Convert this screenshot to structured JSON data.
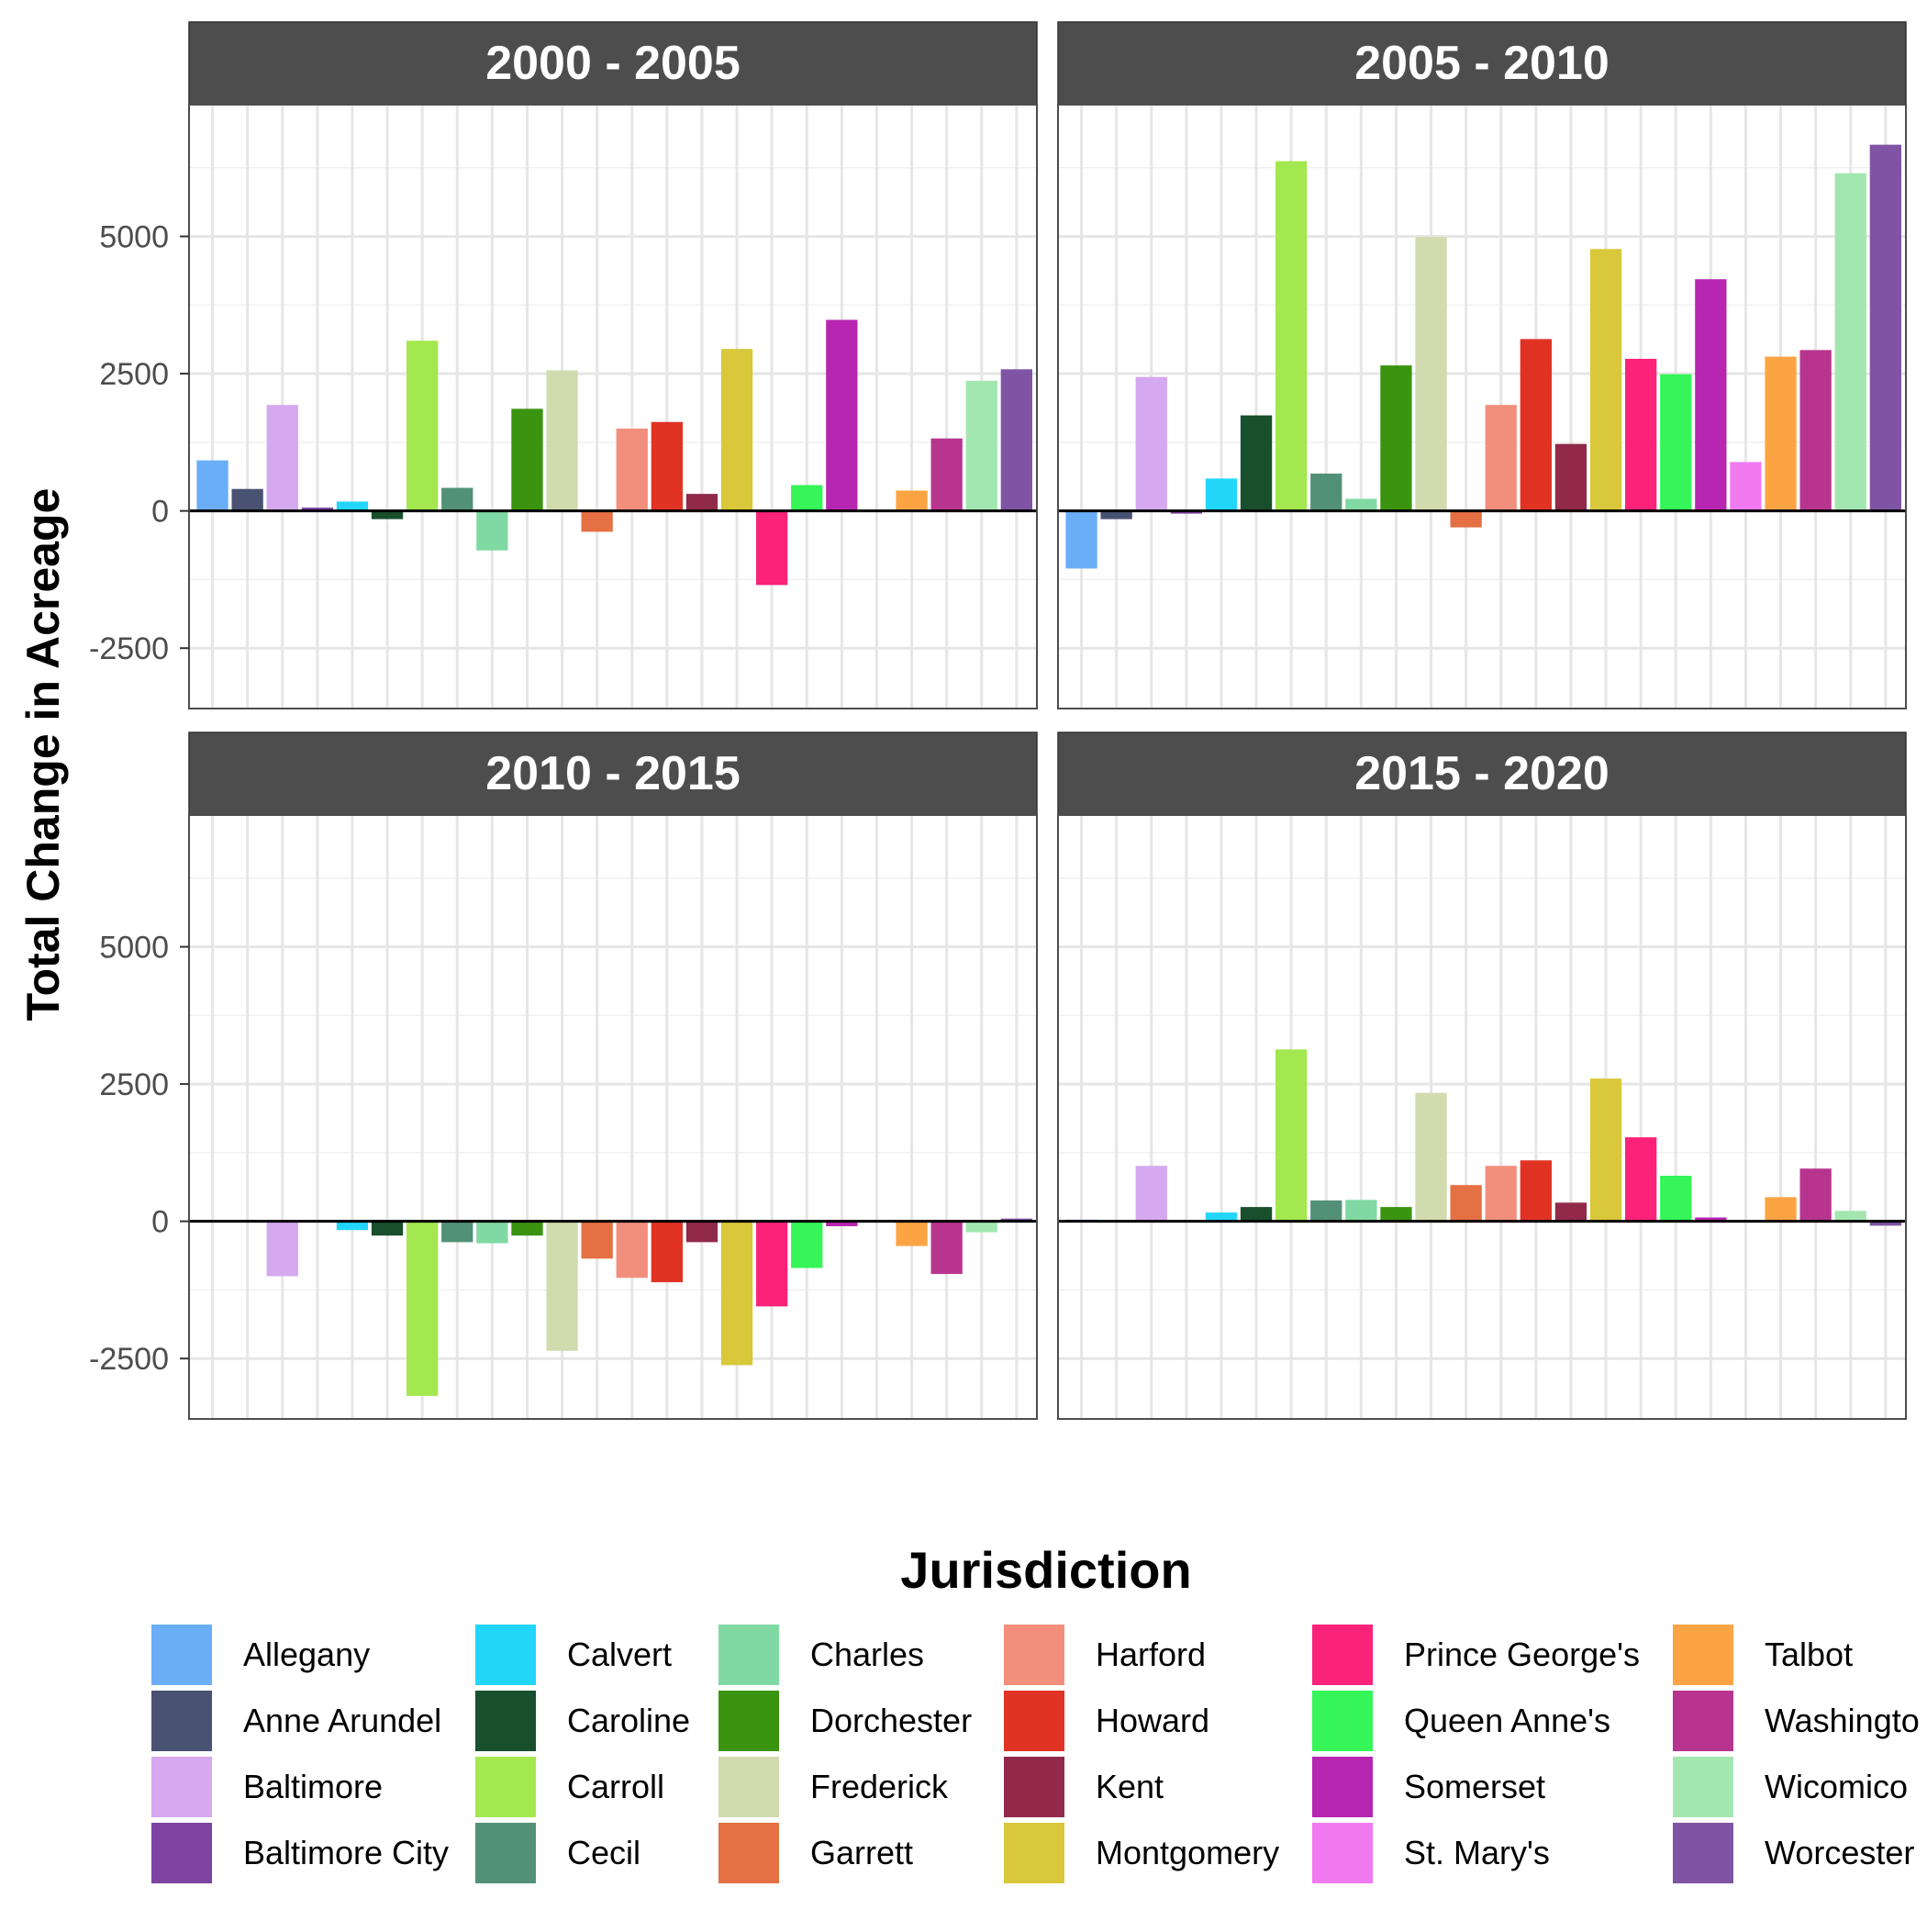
{
  "chart_data": {
    "type": "bar",
    "facet_layout": "2x2",
    "ylabel": "Total Change in Acreage",
    "xlabel": "",
    "ylim": [
      -3600,
      7400
    ],
    "y_ticks": [
      -2500,
      0,
      2500,
      5000
    ],
    "grid": true,
    "legend": {
      "title": "Jurisdiction",
      "placement": "bottom",
      "columns": 6
    },
    "categories": [
      "Allegany",
      "Anne Arundel",
      "Baltimore",
      "Baltimore City",
      "Calvert",
      "Caroline",
      "Carroll",
      "Cecil",
      "Charles",
      "Dorchester",
      "Frederick",
      "Garrett",
      "Harford",
      "Howard",
      "Kent",
      "Montgomery",
      "Prince George's",
      "Queen Anne's",
      "Somerset",
      "St. Mary's",
      "Talbot",
      "Washingto",
      "Wicomico",
      "Worcester"
    ],
    "colors": [
      "#6aaef7",
      "#495272",
      "#d6a8ef",
      "#7e43a1",
      "#22d6fa",
      "#184f2c",
      "#a3e84f",
      "#529178",
      "#80d9a2",
      "#3a9410",
      "#d1dbae",
      "#e47043",
      "#f28f7c",
      "#e03324",
      "#912a4a",
      "#d8c83a",
      "#fb2279",
      "#35f558",
      "#b726b1",
      "#f17af1",
      "#fca444",
      "#b8358f",
      "#a3e7b0",
      "#8054a4"
    ],
    "panels": [
      {
        "title": "2000 - 2005",
        "values": [
          920,
          400,
          1930,
          60,
          170,
          -150,
          3100,
          420,
          -720,
          1860,
          2560,
          -380,
          1500,
          1620,
          310,
          2950,
          -1350,
          470,
          3480,
          0,
          370,
          1320,
          2370,
          2580
        ]
      },
      {
        "title": "2005 - 2010",
        "values": [
          -1050,
          -150,
          2440,
          -50,
          590,
          1740,
          6370,
          680,
          220,
          2650,
          4990,
          -300,
          1930,
          3130,
          1220,
          4770,
          2770,
          2490,
          4220,
          890,
          2810,
          2930,
          6150,
          6670
        ]
      },
      {
        "title": "2010 - 2015",
        "values": [
          0,
          0,
          -1000,
          0,
          -160,
          -260,
          -3180,
          -380,
          -400,
          -260,
          -2360,
          -680,
          -1030,
          -1110,
          -380,
          -2620,
          -1550,
          -850,
          -90,
          0,
          -450,
          -960,
          -200,
          50
        ]
      },
      {
        "title": "2015 - 2020",
        "values": [
          30,
          0,
          1010,
          0,
          160,
          260,
          3130,
          380,
          390,
          260,
          2340,
          660,
          1010,
          1110,
          340,
          2600,
          1530,
          830,
          70,
          0,
          440,
          960,
          190,
          -80
        ]
      }
    ]
  }
}
